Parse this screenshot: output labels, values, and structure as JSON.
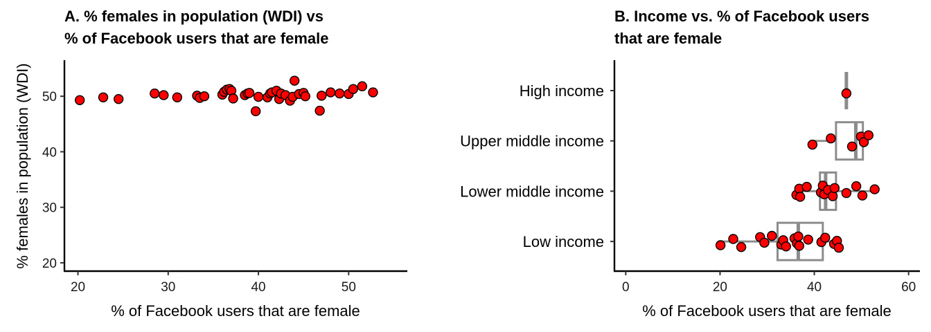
{
  "chart_data": [
    {
      "type": "scatter",
      "title_line1": "A. % females in population (WDI) vs",
      "title_line2": "% of Facebook users that are female",
      "xlabel": "% of Facebook users that are female",
      "ylabel": "% females in population (WDI)",
      "xlim": [
        18.5,
        56.5
      ],
      "ylim": [
        18.5,
        56.5
      ],
      "xticks": [
        20,
        30,
        40,
        50
      ],
      "yticks": [
        20,
        30,
        40,
        50
      ],
      "grid": false,
      "x": [
        20.2,
        22.8,
        24.5,
        28.5,
        29.5,
        31.0,
        33.2,
        33.5,
        34.0,
        36.0,
        36.2,
        36.5,
        36.8,
        37.0,
        37.2,
        38.5,
        38.8,
        39.0,
        39.7,
        40.0,
        41.0,
        41.3,
        41.5,
        42.0,
        42.3,
        42.5,
        43.0,
        43.5,
        43.8,
        44.0,
        44.5,
        45.0,
        45.2,
        46.8,
        47.0,
        48.0,
        49.0,
        50.0,
        50.5,
        51.5,
        52.7
      ],
      "y": [
        49.3,
        49.8,
        49.5,
        50.5,
        50.2,
        49.8,
        50.1,
        49.7,
        50.0,
        50.3,
        50.8,
        51.2,
        51.3,
        51.0,
        49.6,
        50.2,
        50.5,
        50.6,
        47.3,
        49.9,
        49.8,
        50.5,
        50.7,
        51.0,
        49.5,
        50.5,
        50.2,
        49.2,
        49.9,
        52.8,
        50.4,
        50.6,
        50.0,
        47.4,
        50.1,
        50.7,
        50.5,
        50.4,
        51.3,
        51.8,
        50.7
      ]
    },
    {
      "type": "boxplot",
      "title_line1": "B. Income vs. % of Facebook users",
      "title_line2": "that are female",
      "xlabel": "% of Facebook users that are female",
      "ylabel": "",
      "xlim": [
        -2.4,
        62.4
      ],
      "xticks": [
        0,
        20,
        40,
        60
      ],
      "categories": [
        "High income",
        "Upper middle income",
        "Lower middle income",
        "Low income"
      ],
      "boxes": [
        {
          "min": 46.8,
          "q1": 46.8,
          "median": 46.8,
          "q3": 46.8,
          "max": 46.8
        },
        {
          "min": 39.6,
          "q1": 44.6,
          "median": 48.8,
          "q3": 50.3,
          "max": 51.5
        },
        {
          "min": 36.2,
          "q1": 41.2,
          "median": 42.4,
          "q3": 44.6,
          "max": 52.8
        },
        {
          "min": 20.1,
          "q1": 32.2,
          "median": 36.6,
          "q3": 41.8,
          "max": 45.2
        }
      ],
      "points": [
        {
          "category": "High income",
          "values": [
            46.8
          ]
        },
        {
          "category": "Upper middle income",
          "values": [
            39.6,
            43.5,
            48.0,
            49.9,
            50.5,
            51.5
          ]
        },
        {
          "category": "Lower middle income",
          "values": [
            36.2,
            36.8,
            37.0,
            38.4,
            41.4,
            41.8,
            42.1,
            42.9,
            43.9,
            44.3,
            46.8,
            48.9,
            50.2,
            52.8
          ]
        },
        {
          "category": "Low income",
          "values": [
            20.1,
            22.8,
            24.5,
            28.5,
            29.4,
            31.0,
            33.0,
            33.4,
            34.0,
            35.8,
            36.3,
            36.6,
            36.8,
            38.7,
            41.5,
            42.3,
            44.2,
            44.8,
            45.2
          ]
        }
      ]
    }
  ]
}
